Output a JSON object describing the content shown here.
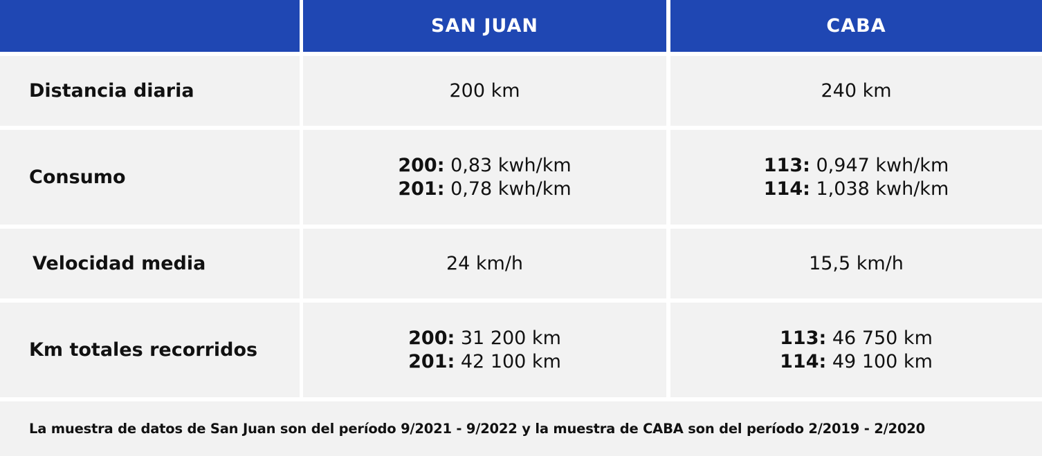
{
  "table": {
    "headers": [
      "",
      "SAN JUAN",
      "CABA"
    ],
    "rows": [
      {
        "label": "Distancia diaria",
        "san_juan": [
          {
            "prefix": "",
            "value": "200 km"
          }
        ],
        "caba": [
          {
            "prefix": "",
            "value": "240 km"
          }
        ]
      },
      {
        "label": "Consumo",
        "san_juan": [
          {
            "prefix": "200:",
            "value": " 0,83 kwh/km"
          },
          {
            "prefix": "201:",
            "value": " 0,78 kwh/km"
          }
        ],
        "caba": [
          {
            "prefix": "113:",
            "value": " 0,947 kwh/km"
          },
          {
            "prefix": "114:",
            "value": " 1,038 kwh/km"
          }
        ]
      },
      {
        "label": "Velocidad media",
        "san_juan": [
          {
            "prefix": "",
            "value": "24 km/h"
          }
        ],
        "caba": [
          {
            "prefix": "",
            "value": "15,5 km/h"
          }
        ]
      },
      {
        "label": "Km totales recorridos",
        "san_juan": [
          {
            "prefix": "200:",
            "value": " 31 200 km"
          },
          {
            "prefix": "201:",
            "value": " 42 100 km"
          }
        ],
        "caba": [
          {
            "prefix": "113:",
            "value": " 46 750 km"
          },
          {
            "prefix": "114:",
            "value": " 49 100 km"
          }
        ]
      }
    ],
    "footnote": "La muestra de datos de San Juan son del período 9/2021 - 9/2022 y la muestra de CABA son del período 2/2019 - 2/2020"
  },
  "colors": {
    "header_bg": "#1f47b3",
    "cell_bg": "#f2f2f2",
    "grid": "#ffffff"
  }
}
